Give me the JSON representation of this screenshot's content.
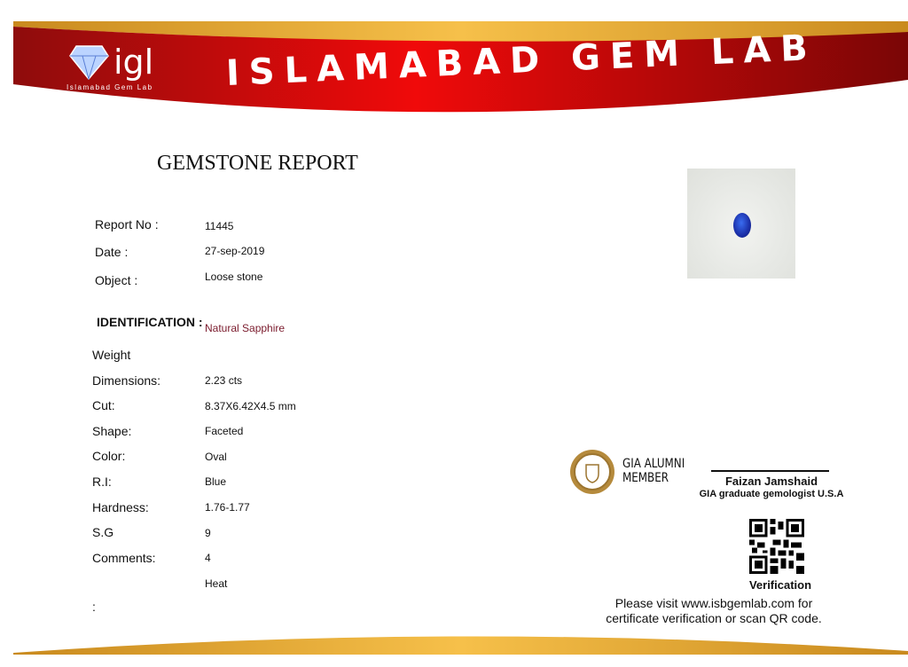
{
  "header": {
    "logo_text": "igl",
    "logo_subtitle": "Islamabad Gem Lab",
    "title": "ISLAMABAD GEM LAB",
    "colors": {
      "red": "#e30613",
      "dark_red": "#8a0a0a",
      "gold": "#f0b43c"
    }
  },
  "report": {
    "title": "GEMSTONE REPORT",
    "meta": [
      {
        "label": "Report No :",
        "value": "11445"
      },
      {
        "label": "Date :",
        "value": "27-sep-2019"
      },
      {
        "label": "Object :",
        "value": "Loose stone"
      }
    ],
    "identification_label": "IDENTIFICATION :",
    "identification_value": "Natural Sapphire",
    "labels": [
      "Weight",
      "Dimensions:",
      "Cut:",
      "Shape:",
      "Color:",
      "R.I:",
      "Hardness:",
      "S.G",
      "Comments:"
    ],
    "values": [
      "2.23 cts",
      "8.37X6.42X4.5 mm",
      "Faceted",
      "Oval",
      "Blue",
      "1.76-1.77",
      "9",
      "4",
      "Heat"
    ],
    "trailing_colon": ":"
  },
  "gia": {
    "line1": "GIA ALUMNI",
    "line2": "MEMBER",
    "seal_text": "GIA ALUMNI"
  },
  "signature": {
    "name": "Faizan Jamshaid",
    "title": "GIA graduate gemologist U.S.A"
  },
  "verification": {
    "label": "Verification",
    "note_line1": "Please visit www.isbgemlab.com for",
    "note_line2": "certificate verification or scan QR code."
  }
}
